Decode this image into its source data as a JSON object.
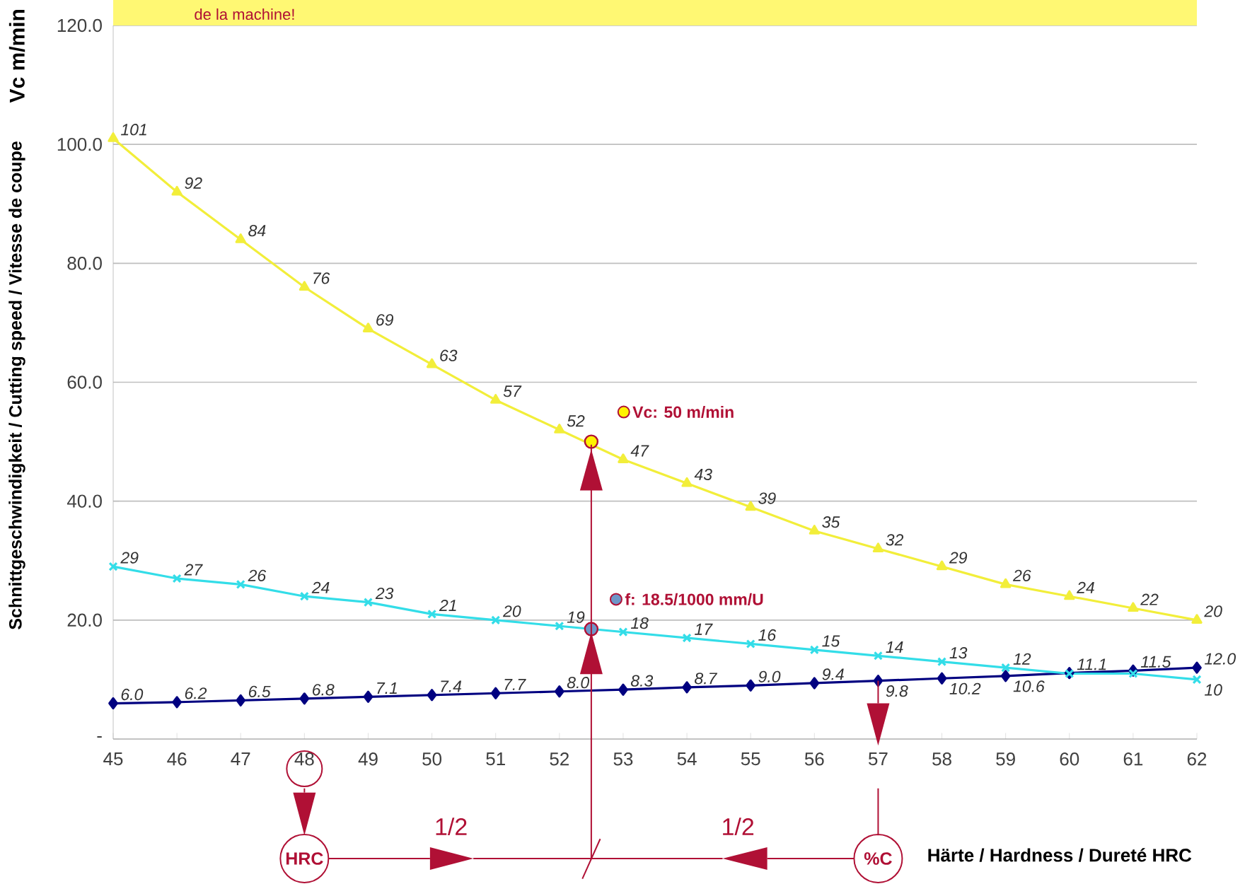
{
  "chart_data": {
    "type": "line",
    "xlabel": "Härte / Hardness / Dureté  HRC",
    "ylabel": "Schnittgeschwindigkeit / Cutting speed / Vitesse de coupe",
    "x": [
      45,
      46,
      47,
      48,
      49,
      50,
      51,
      52,
      53,
      54,
      55,
      56,
      57,
      58,
      59,
      60,
      61,
      62
    ],
    "xlim": [
      45,
      62
    ],
    "xticks": [
      45,
      46,
      47,
      48,
      49,
      50,
      51,
      52,
      53,
      54,
      55,
      56,
      57,
      58,
      59,
      60,
      61,
      62
    ],
    "ylim": [
      0,
      120
    ],
    "yticks": [
      {
        "value": 0,
        "label": "-"
      },
      {
        "value": 20,
        "label": "20.0"
      },
      {
        "value": 40,
        "label": "40.0"
      },
      {
        "value": 60,
        "label": "60.0"
      },
      {
        "value": 80,
        "label": "80.0"
      },
      {
        "value": 100,
        "label": "100.0"
      },
      {
        "value": 120,
        "label": "120.0"
      }
    ],
    "grid": "y",
    "series": [
      {
        "color": "#000080",
        "marker": "diamond",
        "values": [
          6.0,
          6.2,
          6.5,
          6.8,
          7.1,
          7.4,
          7.7,
          8.0,
          8.3,
          8.7,
          9.0,
          9.4,
          9.8,
          10.2,
          10.6,
          11.1,
          11.5,
          12.0
        ],
        "value_labels": [
          "6.0",
          "6.2",
          "6.5",
          "6.8",
          "7.1",
          "7.4",
          "7.7",
          "8.0",
          "8.3",
          "8.7",
          "9.0",
          "9.4",
          "9.8",
          "10.2",
          "10.6",
          "11.1",
          "11.5",
          "12.0"
        ]
      },
      {
        "color": "#f2ee3a",
        "marker": "triangle",
        "values": [
          101,
          92,
          84,
          76,
          69,
          63,
          57,
          52,
          47,
          43,
          39,
          35,
          32,
          29,
          26,
          24,
          22,
          20
        ],
        "value_labels": [
          "101",
          "92",
          "84",
          "76",
          "69",
          "63",
          "57",
          "52",
          "47",
          "43",
          "39",
          "35",
          "32",
          "29",
          "26",
          "24",
          "22",
          "20"
        ]
      },
      {
        "color": "#33dde8",
        "marker": "cross",
        "values": [
          29,
          27,
          26,
          24,
          23,
          21,
          20,
          19,
          18,
          17,
          16,
          15,
          14,
          13,
          12,
          11,
          11,
          10
        ],
        "value_labels": [
          "29",
          "27",
          "26",
          "24",
          "23",
          "21",
          "20",
          "19",
          "18",
          "17",
          "16",
          "15",
          "14",
          "13",
          "12",
          null,
          null,
          "10"
        ]
      }
    ],
    "annotations": [
      "de la machine!",
      "Vc m/min",
      {
        "text": "Vc: 50 m/min",
        "x": 52.5,
        "y": 50
      },
      {
        "text": "f:  18.5/1000 mm/U",
        "x": 52.5,
        "y": 18.5
      },
      "1/2",
      "1/2",
      "HRC",
      "%C"
    ]
  }
}
